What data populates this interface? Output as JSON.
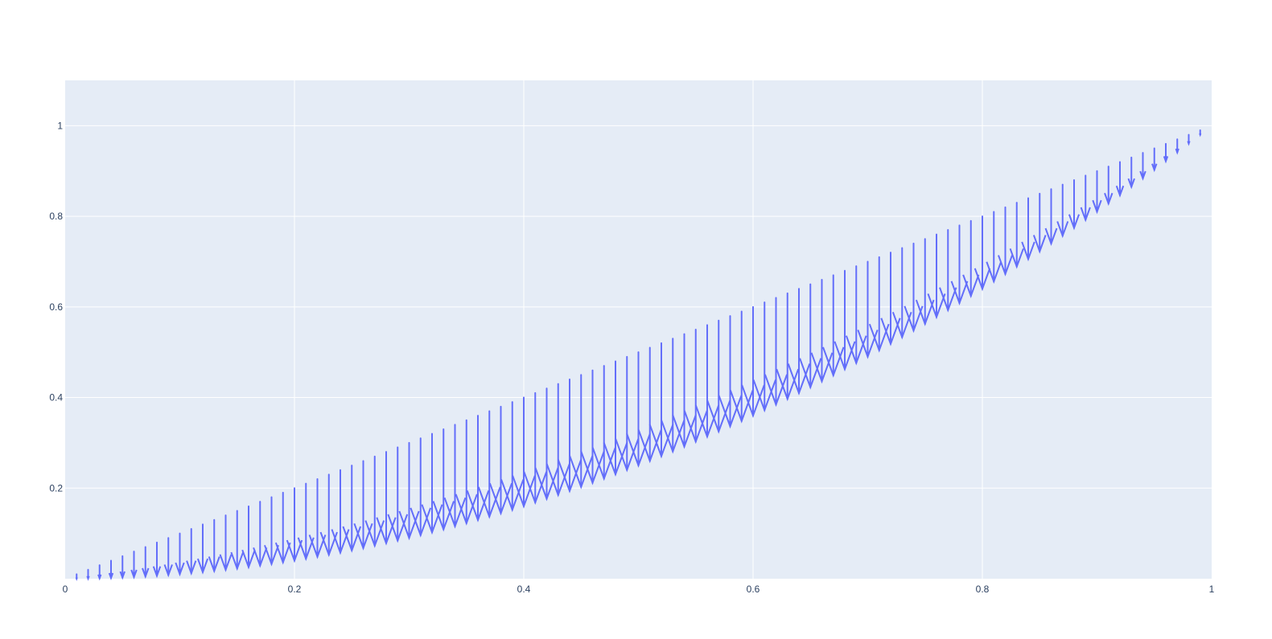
{
  "chart_data": {
    "type": "quiver",
    "title": "",
    "xlabel": "",
    "ylabel": "",
    "xlim": [
      0,
      1
    ],
    "ylim": [
      0,
      1.1
    ],
    "x_ticks": [
      0,
      0.2,
      0.4,
      0.6,
      0.8,
      1
    ],
    "x_tick_labels": [
      "0",
      "0.2",
      "0.4",
      "0.6",
      "0.8",
      "1"
    ],
    "y_ticks": [
      0.2,
      0.4,
      0.6,
      0.8,
      1
    ],
    "y_tick_labels": [
      "0.2",
      "0.4",
      "0.6",
      "0.8",
      "1"
    ],
    "grid": true,
    "legend": "none",
    "series": [
      {
        "x_start": 0.01,
        "x_end": 0.99,
        "x_step": 0.01,
        "base": "y = x",
        "u": 0,
        "v": "-x*(1-x)"
      }
    ]
  },
  "colors": {
    "plot_bg": "#E5ECF6",
    "grid": "#ffffff",
    "arrow": "#636EFA",
    "text": "#2a3f5f"
  }
}
